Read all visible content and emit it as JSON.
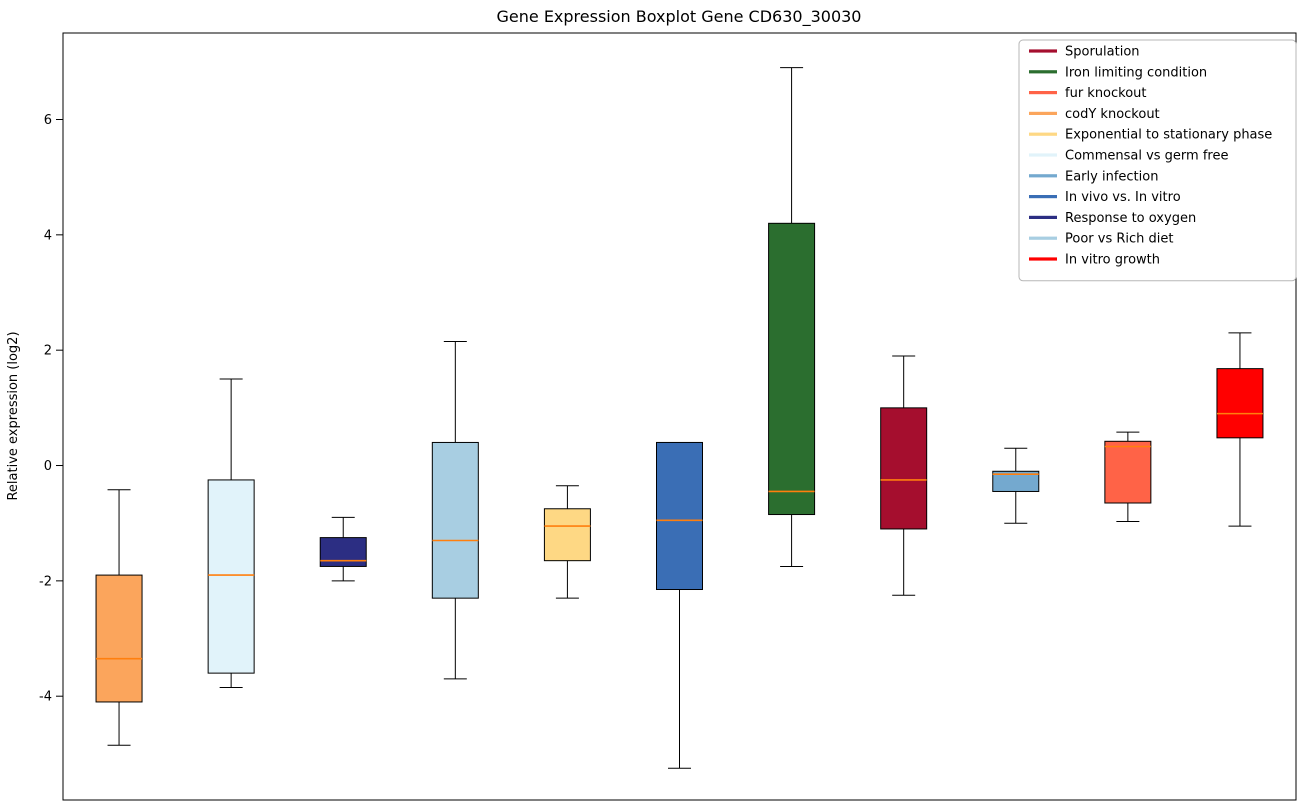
{
  "chart_data": {
    "type": "boxplot",
    "title": "Gene Expression Boxplot Gene CD630_30030",
    "ylabel": "Relative expression (log2)",
    "ylim": [
      -5.8,
      7.5
    ],
    "yticks": [
      -4,
      -2,
      0,
      2,
      4,
      6
    ],
    "grid": false,
    "legend_position": "upper right",
    "median_color": "#FF7F0E",
    "legend": [
      {
        "label": "Sporulation",
        "color": "#A50E2E"
      },
      {
        "label": "Iron limiting condition",
        "color": "#2B6E2F"
      },
      {
        "label": "fur knockout",
        "color": "#FF6347"
      },
      {
        "label": "codY knockout",
        "color": "#FBA55C"
      },
      {
        "label": "Exponential to stationary phase",
        "color": "#FED884"
      },
      {
        "label": "Commensal vs germ free",
        "color": "#E1F3FA"
      },
      {
        "label": "Early infection",
        "color": "#74A9CF"
      },
      {
        "label": "In vivo vs. In vitro",
        "color": "#3A6EB5"
      },
      {
        "label": "Response to oxygen",
        "color": "#2C2E83"
      },
      {
        "label": "Poor vs Rich diet",
        "color": "#A8CEE2"
      },
      {
        "label": "In vitro growth",
        "color": "#FF0000"
      }
    ],
    "boxes": [
      {
        "condition": "codY knockout",
        "color": "#FBA55C",
        "whisker_low": -4.85,
        "q1": -4.1,
        "median": -3.35,
        "q3": -1.9,
        "whisker_high": -0.42
      },
      {
        "condition": "Commensal vs germ free",
        "color": "#E1F3FA",
        "whisker_low": -3.85,
        "q1": -3.6,
        "median": -1.9,
        "q3": -0.25,
        "whisker_high": 1.5
      },
      {
        "condition": "Response to oxygen",
        "color": "#2C2E83",
        "whisker_low": -2.0,
        "q1": -1.75,
        "median": -1.65,
        "q3": -1.25,
        "whisker_high": -0.9
      },
      {
        "condition": "Poor vs Rich diet",
        "color": "#A8CEE2",
        "whisker_low": -3.7,
        "q1": -2.3,
        "median": -1.3,
        "q3": 0.4,
        "whisker_high": 2.15
      },
      {
        "condition": "Exponential to stationary phase",
        "color": "#FED884",
        "whisker_low": -2.3,
        "q1": -1.65,
        "median": -1.05,
        "q3": -0.75,
        "whisker_high": -0.35
      },
      {
        "condition": "In vivo vs. In vitro",
        "color": "#3A6EB5",
        "whisker_low": -5.25,
        "q1": -2.15,
        "median": -0.95,
        "q3": 0.4,
        "whisker_high": 0.4
      },
      {
        "condition": "Iron limiting condition",
        "color": "#2B6E2F",
        "whisker_low": -1.75,
        "q1": -0.85,
        "median": -0.45,
        "q3": 4.2,
        "whisker_high": 6.9
      },
      {
        "condition": "Sporulation",
        "color": "#A50E2E",
        "whisker_low": -2.25,
        "q1": -1.1,
        "median": -0.25,
        "q3": 1.0,
        "whisker_high": 1.9
      },
      {
        "condition": "Early infection",
        "color": "#74A9CF",
        "whisker_low": -1.0,
        "q1": -0.45,
        "median": -0.15,
        "q3": -0.1,
        "whisker_high": 0.3
      },
      {
        "condition": "fur knockout",
        "color": "#FF6347",
        "whisker_low": -0.97,
        "q1": -0.65,
        "median": 0.33,
        "q3": 0.42,
        "whisker_high": 0.58
      },
      {
        "condition": "In vitro growth",
        "color": "#FF0000",
        "whisker_low": -1.05,
        "q1": 0.48,
        "median": 0.9,
        "q3": 1.68,
        "whisker_high": 2.3
      }
    ]
  }
}
